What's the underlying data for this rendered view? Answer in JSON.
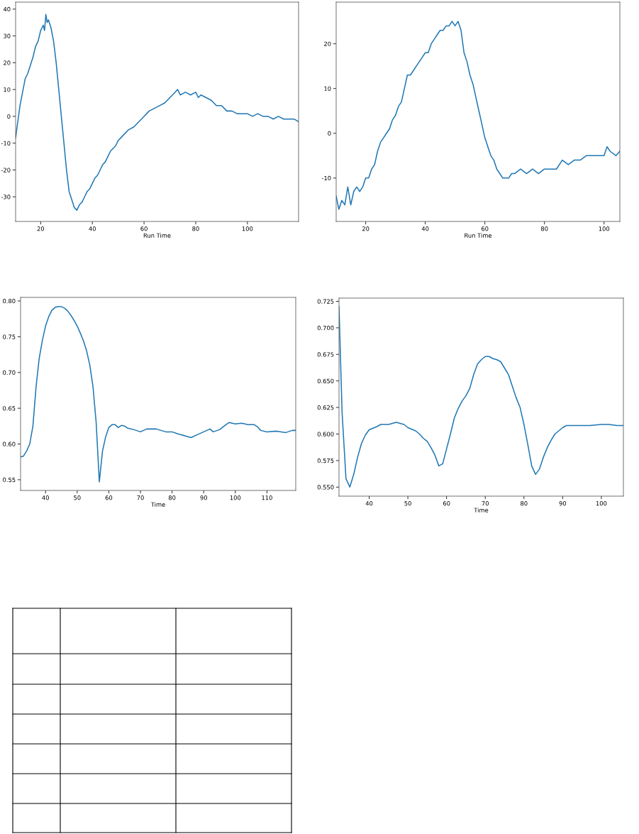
{
  "chart_data": [
    {
      "type": "line",
      "xlabel": "Run Time",
      "xlim": [
        10.3,
        119.8
      ],
      "ylim": [
        -39.2,
        42.6
      ],
      "xticks": [
        20,
        40,
        60,
        80,
        100
      ],
      "yticks": [
        -30,
        -20,
        -10,
        0,
        10,
        20,
        30,
        40
      ],
      "grid": false,
      "marker": "none",
      "line_style": "solid",
      "series": [
        {
          "color": "#1f77b4",
          "x": [
            10.3,
            11,
            12,
            13,
            14,
            15,
            16,
            17,
            18,
            19,
            20,
            21,
            21.5,
            22,
            22.5,
            23,
            24,
            25,
            26,
            27,
            28,
            29,
            30,
            31,
            32,
            33,
            34,
            35,
            36,
            37,
            38,
            39,
            40,
            41,
            42,
            43,
            44,
            45,
            46,
            47,
            48,
            49,
            50,
            51,
            52,
            54,
            56,
            58,
            60,
            61,
            62,
            64,
            66,
            68,
            70,
            72,
            73,
            74,
            76,
            78,
            80,
            81,
            82,
            84,
            86,
            88,
            90,
            92,
            94,
            96,
            98,
            100,
            102,
            104,
            106,
            108,
            110,
            112,
            114,
            116,
            118,
            119.8
          ],
          "values": [
            -8,
            -3,
            4,
            9,
            14,
            16,
            19,
            22,
            26,
            28,
            32,
            34,
            32,
            38,
            35,
            36,
            33,
            28,
            20,
            10,
            0,
            -10,
            -20,
            -28,
            -31,
            -34,
            -35,
            -33,
            -32,
            -30,
            -28,
            -27,
            -25,
            -23,
            -22,
            -20,
            -18,
            -17,
            -15,
            -13,
            -12,
            -11,
            -9,
            -8,
            -7,
            -5,
            -4,
            -2,
            0,
            1,
            2,
            3,
            4,
            5,
            7,
            9,
            10,
            8,
            9,
            8,
            9,
            7,
            8,
            7,
            6,
            4,
            4,
            2,
            2,
            1,
            1,
            1,
            0,
            1,
            0,
            0,
            -1,
            0,
            -1,
            -1,
            -1,
            -2
          ]
        }
      ]
    },
    {
      "type": "line",
      "xlabel": "Run Time",
      "xlim": [
        10.1,
        105.3
      ],
      "ylim": [
        -19.7,
        29.3
      ],
      "xticks": [
        20,
        40,
        60,
        80,
        100
      ],
      "yticks": [
        -10,
        0,
        10,
        20
      ],
      "grid": false,
      "marker": "none",
      "line_style": "solid",
      "series": [
        {
          "color": "#1f77b4",
          "x": [
            10.1,
            11,
            12,
            13,
            14,
            15,
            16,
            17,
            18,
            19,
            20,
            21,
            22,
            23,
            24,
            25,
            26,
            27,
            28,
            29,
            30,
            31,
            32,
            33,
            34,
            35,
            36,
            37,
            38,
            39,
            40,
            41,
            42,
            43,
            44,
            45,
            46,
            47,
            48,
            49,
            50,
            51,
            52,
            53,
            54,
            55,
            56,
            57,
            58,
            59,
            60,
            61,
            62,
            63,
            64,
            65,
            66,
            67,
            68,
            69,
            70,
            72,
            74,
            76,
            78,
            80,
            82,
            84,
            86,
            88,
            90,
            92,
            94,
            96,
            98,
            100,
            101,
            102,
            104,
            105.3
          ],
          "values": [
            -14,
            -17,
            -15,
            -16,
            -12,
            -16,
            -13,
            -12,
            -13,
            -12,
            -10,
            -10,
            -8,
            -7,
            -4,
            -2,
            -1,
            0,
            1,
            3,
            4,
            6,
            7,
            10,
            13,
            13,
            14,
            15,
            16,
            17,
            18,
            18,
            20,
            21,
            22,
            23,
            23,
            24,
            24,
            25,
            24,
            25,
            23,
            18,
            16,
            13,
            11,
            8,
            5,
            2,
            -1,
            -3,
            -5,
            -6,
            -8,
            -9,
            -10,
            -10,
            -10,
            -9,
            -9,
            -8,
            -9,
            -8,
            -9,
            -8,
            -8,
            -8,
            -6,
            -7,
            -6,
            -6,
            -5,
            -5,
            -5,
            -5,
            -3,
            -4,
            -5,
            -4
          ]
        }
      ]
    },
    {
      "type": "line",
      "xlabel": "Time",
      "xlim": [
        32.1,
        119.1
      ],
      "ylim": [
        0.535,
        0.805
      ],
      "xticks": [
        40,
        50,
        60,
        70,
        80,
        90,
        100,
        110
      ],
      "yticks": [
        {
          "value": 0.55,
          "label": "0.55"
        },
        {
          "value": 0.6,
          "label": "0.60"
        },
        {
          "value": 0.65,
          "label": "0.65"
        },
        {
          "value": 0.7,
          "label": "0.70"
        },
        {
          "value": 0.75,
          "label": "0.75"
        },
        {
          "value": 0.8,
          "label": "0.80"
        }
      ],
      "grid": false,
      "marker": "none",
      "line_style": "solid",
      "series": [
        {
          "color": "#1f77b4",
          "x": [
            32.1,
            33,
            34,
            35,
            36,
            37,
            38,
            39,
            40,
            41,
            42,
            43,
            44,
            45,
            46,
            47,
            48,
            49,
            50,
            51,
            52,
            53,
            54,
            55,
            56,
            57,
            58,
            59,
            60,
            61,
            62,
            63,
            64,
            65,
            66,
            68,
            70,
            72,
            75,
            78,
            80,
            82,
            86,
            88,
            90,
            92,
            93,
            95,
            97,
            98,
            100,
            102,
            104,
            106,
            107,
            108,
            110,
            113,
            116,
            118,
            119.1
          ],
          "values": [
            0.582,
            0.583,
            0.59,
            0.6,
            0.625,
            0.68,
            0.72,
            0.745,
            0.765,
            0.778,
            0.787,
            0.791,
            0.792,
            0.792,
            0.79,
            0.786,
            0.78,
            0.773,
            0.765,
            0.755,
            0.744,
            0.73,
            0.71,
            0.68,
            0.63,
            0.547,
            0.59,
            0.61,
            0.623,
            0.627,
            0.627,
            0.623,
            0.626,
            0.625,
            0.622,
            0.62,
            0.617,
            0.621,
            0.621,
            0.617,
            0.617,
            0.614,
            0.609,
            0.613,
            0.617,
            0.621,
            0.617,
            0.62,
            0.627,
            0.63,
            0.628,
            0.629,
            0.627,
            0.627,
            0.624,
            0.619,
            0.617,
            0.618,
            0.616,
            0.619,
            0.619
          ]
        }
      ]
    },
    {
      "type": "line",
      "xlabel": "Time",
      "xlim": [
        32.2,
        105.7
      ],
      "ylim": [
        0.5415,
        0.728
      ],
      "xticks": [
        40,
        50,
        60,
        70,
        80,
        90,
        100
      ],
      "yticks": [
        {
          "value": 0.55,
          "label": "0.550"
        },
        {
          "value": 0.575,
          "label": "0.575"
        },
        {
          "value": 0.6,
          "label": "0.600"
        },
        {
          "value": 0.625,
          "label": "0.625"
        },
        {
          "value": 0.65,
          "label": "0.650"
        },
        {
          "value": 0.675,
          "label": "0.675"
        },
        {
          "value": 0.7,
          "label": "0.700"
        },
        {
          "value": 0.725,
          "label": "0.725"
        }
      ],
      "grid": false,
      "marker": "none",
      "line_style": "solid",
      "series": [
        {
          "color": "#1f77b4",
          "x": [
            32.2,
            33,
            34,
            35,
            36,
            37,
            38,
            39,
            40,
            42,
            43,
            45,
            47,
            49,
            50,
            52,
            53,
            54,
            55,
            56,
            57,
            58,
            59,
            60,
            61,
            62,
            63,
            64,
            65,
            66,
            67,
            68,
            69,
            70,
            71,
            72,
            73,
            74,
            75,
            76,
            77,
            78,
            79,
            80,
            81,
            82,
            83,
            84,
            85,
            86,
            87,
            88,
            90,
            91,
            93,
            97,
            100,
            102,
            104,
            105.7
          ],
          "values": [
            0.72,
            0.62,
            0.558,
            0.55,
            0.562,
            0.578,
            0.591,
            0.599,
            0.604,
            0.607,
            0.609,
            0.609,
            0.611,
            0.609,
            0.606,
            0.603,
            0.6,
            0.596,
            0.593,
            0.587,
            0.58,
            0.57,
            0.572,
            0.586,
            0.6,
            0.615,
            0.624,
            0.631,
            0.636,
            0.643,
            0.656,
            0.666,
            0.67,
            0.673,
            0.673,
            0.671,
            0.67,
            0.668,
            0.662,
            0.656,
            0.645,
            0.634,
            0.625,
            0.609,
            0.59,
            0.57,
            0.562,
            0.567,
            0.578,
            0.587,
            0.594,
            0.6,
            0.606,
            0.608,
            0.608,
            0.608,
            0.609,
            0.609,
            0.608,
            0.608
          ]
        }
      ]
    }
  ]
}
